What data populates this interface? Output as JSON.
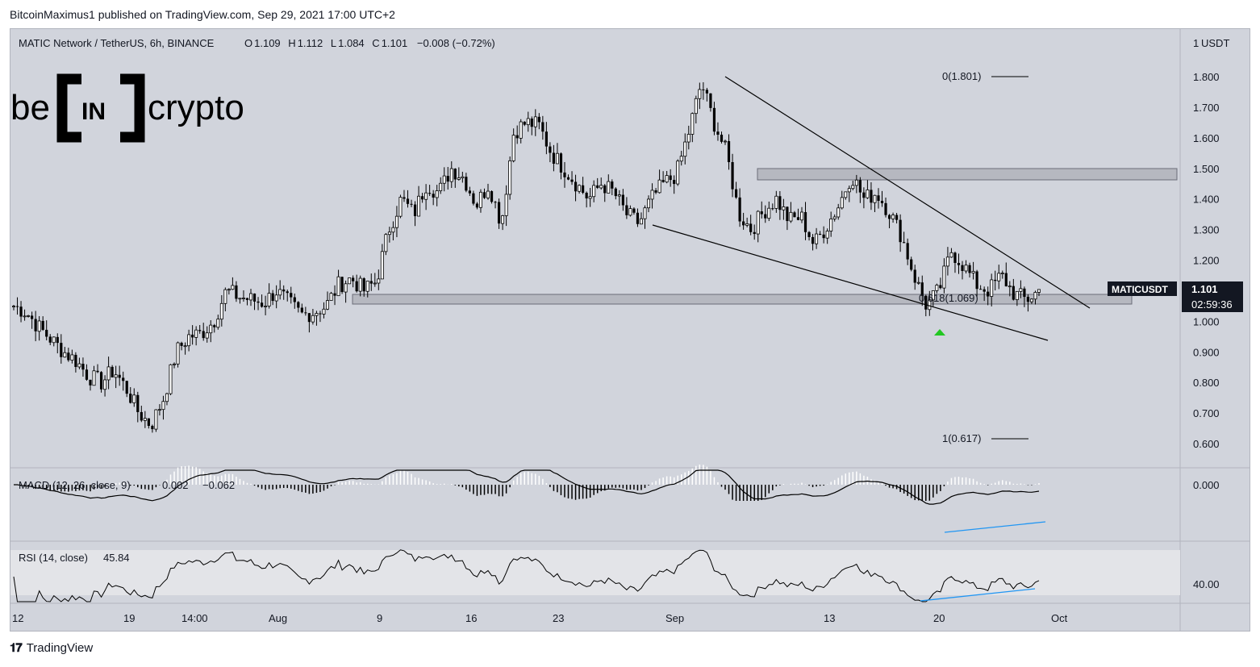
{
  "header": {
    "published": "BitcoinMaximus1 published on TradingView.com, Sep 29, 2021 17:00 UTC+2"
  },
  "legend": {
    "symbol": "MATIC Network / TetherUS, 6h, BINANCE",
    "o_label": "O",
    "o": "1.109",
    "h_label": "H",
    "h": "1.112",
    "l_label": "L",
    "l": "1.084",
    "c_label": "C",
    "c": "1.101",
    "change": "−0.008 (−0.72%)"
  },
  "logo": {
    "left": "be",
    "middle": "IN",
    "right": "crypto"
  },
  "price_badge": {
    "symbol": "MATICUSDT",
    "price": "1.101",
    "countdown": "02:59:36"
  },
  "fib_levels": [
    {
      "label": "0(1.801)",
      "value": 1.801
    },
    {
      "label": "0.618(1.069)",
      "value": 1.069
    },
    {
      "label": "1(0.617)",
      "value": 0.617
    }
  ],
  "macd": {
    "label": "MACD (12, 26, close, 9)",
    "value1": "0.002",
    "value2": "−0.062",
    "axis_label": "0.000"
  },
  "rsi": {
    "label": "RSI (14, close)",
    "value": "45.84",
    "axis_label": "40.00"
  },
  "footer": {
    "brand": "TradingView"
  },
  "colors": {
    "background": "#d1d4dc",
    "line": "#000000",
    "candle_body": "#000000",
    "rsi_band": "#e6e7eb",
    "divergence": "#2196f3",
    "arrow": "#22c722",
    "badge": "#131722"
  },
  "chart_data": {
    "type": "candlestick",
    "title": "MATIC Network / TetherUS, 6h, BINANCE",
    "y_unit": "USDT",
    "ylim": [
      0.55,
      1.9
    ],
    "y_ticks": [
      "1.800",
      "1.700",
      "1.600",
      "1.500",
      "1.400",
      "1.300",
      "1.200",
      "1.100",
      "1.000",
      "0.900",
      "0.800",
      "0.700",
      "0.600"
    ],
    "x_ticks": [
      "12",
      "19",
      "14:00",
      "Aug",
      "9",
      "16",
      "23",
      "Sep",
      "13",
      "20",
      "Oct"
    ],
    "close_series": [
      1.05,
      1.03,
      0.98,
      0.94,
      0.9,
      0.87,
      0.82,
      0.8,
      0.84,
      0.78,
      0.7,
      0.66,
      0.75,
      0.9,
      0.95,
      0.96,
      1.0,
      1.1,
      1.08,
      1.07,
      1.06,
      1.1,
      1.06,
      1.02,
      1.03,
      1.05,
      1.12,
      1.14,
      1.1,
      1.13,
      1.3,
      1.4,
      1.35,
      1.45,
      1.42,
      1.5,
      1.47,
      1.38,
      1.45,
      1.32,
      1.62,
      1.65,
      1.64,
      1.55,
      1.5,
      1.45,
      1.4,
      1.45,
      1.42,
      1.35,
      1.32,
      1.4,
      1.45,
      1.48,
      1.62,
      1.78,
      1.65,
      1.55,
      1.35,
      1.3,
      1.36,
      1.4,
      1.33,
      1.34,
      1.25,
      1.31,
      1.38,
      1.48,
      1.4,
      1.42,
      1.36,
      1.28,
      1.15,
      1.05,
      1.1,
      1.23,
      1.18,
      1.12,
      1.1,
      1.15,
      1.09,
      1.07,
      1.1
    ],
    "resistance_zone": [
      1.46,
      1.5
    ],
    "support_zone": [
      1.05,
      1.08
    ],
    "annotations": [
      "Descending wedge",
      "Bullish divergence on MACD",
      "Bullish divergence on RSI"
    ]
  }
}
